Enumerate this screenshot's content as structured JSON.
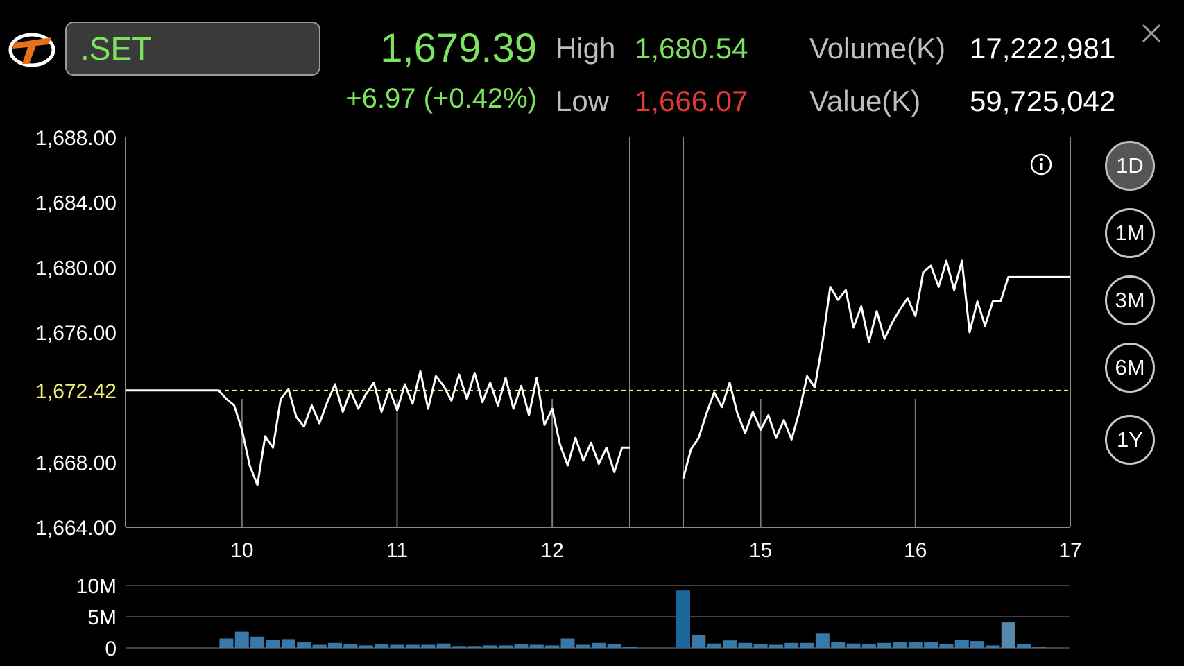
{
  "header": {
    "symbol": ".SET",
    "price": "1,679.39",
    "change": "+6.97 (+0.42%)",
    "high_label": "High",
    "high_value": "1,680.54",
    "low_label": "Low",
    "low_value": "1,666.07",
    "volume_label": "Volume(K)",
    "volume_value": "17,222,981",
    "value_label": "Value(K)",
    "value_value": "59,725,042"
  },
  "periods": [
    "1D",
    "1M",
    "3M",
    "6M",
    "1Y"
  ],
  "active_period": "1D",
  "colors": {
    "up": "#7CE35E",
    "down": "#E53935",
    "reference": "#F2F275",
    "volume": "#3C7FB0"
  },
  "chart_data": [
    {
      "type": "line",
      "ylim": [
        1664,
        1688
      ],
      "yticks": [
        "1,688.00",
        "1,684.00",
        "1,680.00",
        "1,676.00",
        "1,672.42",
        "1,668.00",
        "1,664.00"
      ],
      "ytick_values": [
        1688,
        1684,
        1680,
        1676,
        1672.42,
        1668,
        1664
      ],
      "xticks": [
        "10",
        "11",
        "12",
        "15",
        "16",
        "17"
      ],
      "xtick_values": [
        10,
        11,
        12,
        15,
        16,
        17
      ],
      "reference_line": 1672.42,
      "grid": true,
      "session_break": [
        12.5,
        14.5
      ],
      "segments": [
        {
          "x": [
            9.25,
            9.85,
            9.9,
            9.95,
            10.0,
            10.05,
            10.1,
            10.15,
            10.2,
            10.25,
            10.3,
            10.35,
            10.4,
            10.45,
            10.5,
            10.55,
            10.6,
            10.65,
            10.7,
            10.75,
            10.8,
            10.85,
            10.9,
            10.95,
            11.0,
            11.05,
            11.1,
            11.15,
            11.2,
            11.25,
            11.3,
            11.35,
            11.4,
            11.45,
            11.5,
            11.55,
            11.6,
            11.65,
            11.7,
            11.75,
            11.8,
            11.85,
            11.9,
            11.95,
            12.0,
            12.05,
            12.1,
            12.15,
            12.2,
            12.25,
            12.3,
            12.35,
            12.4,
            12.45,
            12.5
          ],
          "y": [
            1672.42,
            1672.42,
            1671.9,
            1671.5,
            1670.0,
            1667.8,
            1666.6,
            1669.6,
            1668.9,
            1671.9,
            1672.5,
            1670.8,
            1670.2,
            1671.5,
            1670.4,
            1671.7,
            1672.8,
            1671.1,
            1672.4,
            1671.3,
            1672.2,
            1672.9,
            1671.1,
            1672.5,
            1671.2,
            1672.8,
            1671.6,
            1673.6,
            1671.3,
            1673.3,
            1672.7,
            1671.8,
            1673.4,
            1671.9,
            1673.5,
            1671.7,
            1672.9,
            1671.5,
            1673.2,
            1671.3,
            1672.7,
            1670.9,
            1673.2,
            1670.3,
            1671.3,
            1669.1,
            1667.8,
            1669.5,
            1668.1,
            1669.2,
            1667.9,
            1668.9,
            1667.4,
            1668.9,
            1668.9
          ]
        },
        {
          "x": [
            14.5,
            14.55,
            14.6,
            14.65,
            14.7,
            14.75,
            14.8,
            14.85,
            14.9,
            14.95,
            15.0,
            15.05,
            15.1,
            15.15,
            15.2,
            15.25,
            15.3,
            15.35,
            15.4,
            15.45,
            15.5,
            15.55,
            15.6,
            15.65,
            15.7,
            15.75,
            15.8,
            15.85,
            15.9,
            15.95,
            16.0,
            16.05,
            16.1,
            16.15,
            16.2,
            16.25,
            16.3,
            16.35,
            16.4,
            16.45,
            16.5,
            16.55,
            16.6,
            16.65,
            16.7,
            16.75,
            16.8,
            16.85,
            17.0
          ],
          "y": [
            1667.0,
            1668.8,
            1669.5,
            1671.0,
            1672.3,
            1671.4,
            1672.9,
            1671.0,
            1669.8,
            1671.1,
            1670.0,
            1670.9,
            1669.5,
            1670.6,
            1669.4,
            1671.1,
            1673.3,
            1672.6,
            1675.4,
            1678.8,
            1678.0,
            1678.6,
            1676.3,
            1677.6,
            1675.4,
            1677.3,
            1675.6,
            1676.6,
            1677.4,
            1678.1,
            1677.0,
            1679.7,
            1680.1,
            1678.8,
            1680.4,
            1678.6,
            1680.4,
            1676.0,
            1677.9,
            1676.4,
            1677.9,
            1677.9,
            1679.4,
            1679.4,
            1679.4,
            1679.4,
            1679.4,
            1679.4,
            1679.4
          ]
        }
      ]
    },
    {
      "type": "bar",
      "ylim": [
        0,
        10
      ],
      "yticks": [
        "10M",
        "5M",
        "0"
      ],
      "ytick_values": [
        10,
        5,
        0
      ],
      "x": [
        9.9,
        10.0,
        10.1,
        10.2,
        10.3,
        10.4,
        10.5,
        10.6,
        10.7,
        10.8,
        10.9,
        11.0,
        11.1,
        11.2,
        11.3,
        11.4,
        11.5,
        11.6,
        11.7,
        11.8,
        11.9,
        12.0,
        12.1,
        12.2,
        12.3,
        12.4,
        12.5,
        14.5,
        14.6,
        14.7,
        14.8,
        14.9,
        15.0,
        15.1,
        15.2,
        15.3,
        15.4,
        15.5,
        15.6,
        15.7,
        15.8,
        15.9,
        16.0,
        16.1,
        16.2,
        16.3,
        16.4,
        16.5,
        16.6,
        16.7,
        16.8
      ],
      "values": [
        1.5,
        2.6,
        1.8,
        1.3,
        1.4,
        0.9,
        0.5,
        0.8,
        0.6,
        0.4,
        0.6,
        0.5,
        0.5,
        0.5,
        0.7,
        0.3,
        0.3,
        0.4,
        0.4,
        0.6,
        0.5,
        0.4,
        1.5,
        0.5,
        0.8,
        0.6,
        0.2,
        9.2,
        2.1,
        0.7,
        1.2,
        0.8,
        0.6,
        0.5,
        0.8,
        0.8,
        2.3,
        1.0,
        0.7,
        0.6,
        0.8,
        1.0,
        0.9,
        0.9,
        0.6,
        1.3,
        1.1,
        0.4,
        4.1,
        0.6,
        0.1
      ]
    }
  ]
}
